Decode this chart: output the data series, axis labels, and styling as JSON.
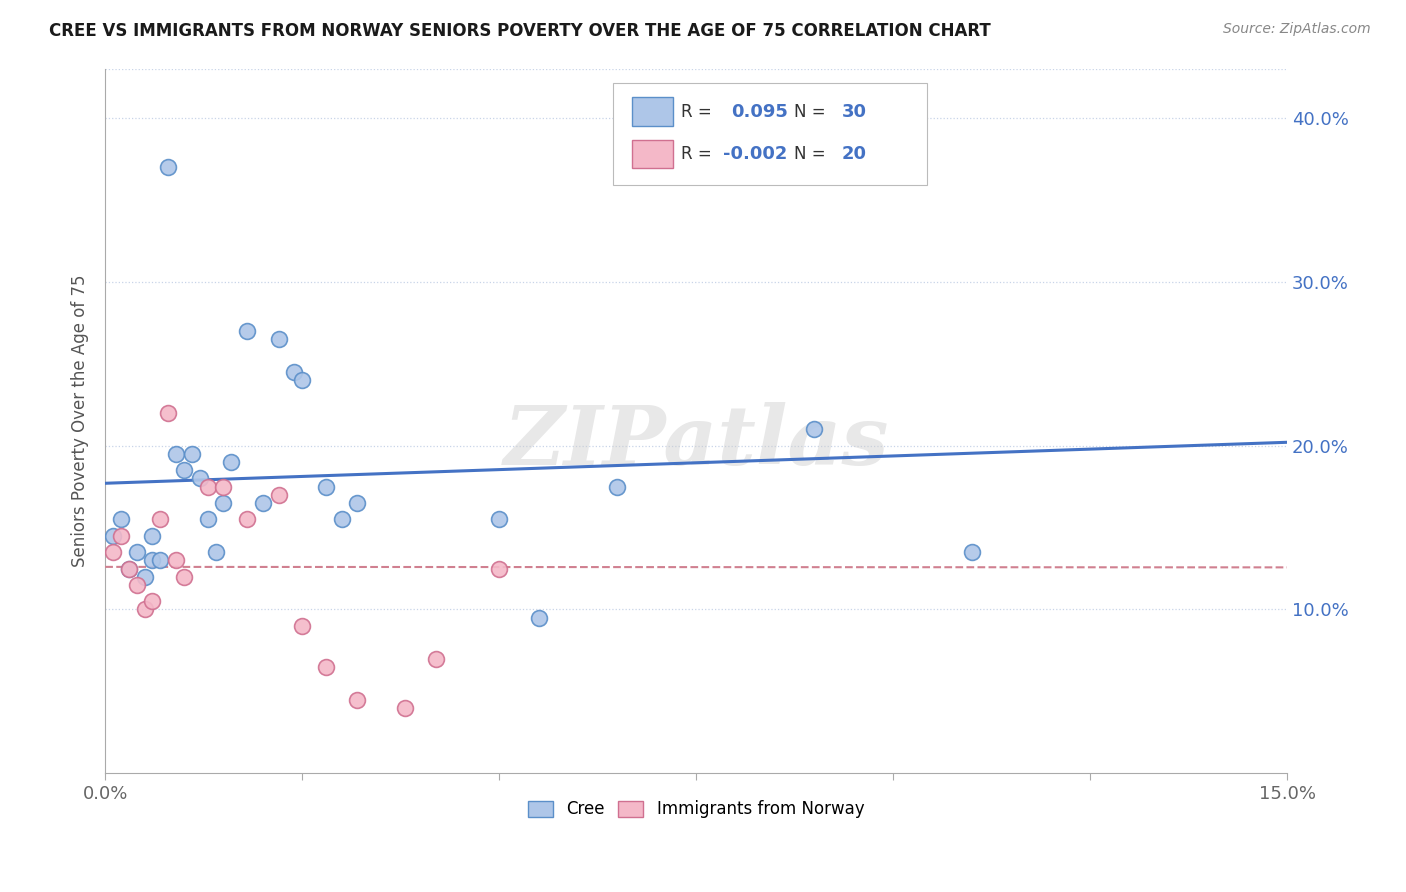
{
  "title": "CREE VS IMMIGRANTS FROM NORWAY SENIORS POVERTY OVER THE AGE OF 75 CORRELATION CHART",
  "source": "Source: ZipAtlas.com",
  "xlabel": "",
  "ylabel": "Seniors Poverty Over the Age of 75",
  "xlim": [
    0.0,
    0.15
  ],
  "ylim": [
    0.0,
    0.43
  ],
  "xticks": [
    0.0,
    0.025,
    0.05,
    0.075,
    0.1,
    0.125,
    0.15
  ],
  "xtick_labels": [
    "0.0%",
    "",
    "",
    "",
    "",
    "",
    "15.0%"
  ],
  "ytick_labels_right": [
    "10.0%",
    "20.0%",
    "30.0%",
    "40.0%"
  ],
  "ytick_vals_right": [
    0.1,
    0.2,
    0.3,
    0.4
  ],
  "cree_color": "#aec6e8",
  "norway_color": "#f4b8c8",
  "cree_edge_color": "#5b8fc9",
  "norway_edge_color": "#d07090",
  "cree_line_color": "#4472c4",
  "norway_line_color": "#d08090",
  "cree_R": 0.095,
  "cree_N": 30,
  "norway_R": -0.002,
  "norway_N": 20,
  "cree_points_x": [
    0.001,
    0.002,
    0.003,
    0.004,
    0.005,
    0.006,
    0.006,
    0.007,
    0.008,
    0.009,
    0.01,
    0.011,
    0.012,
    0.013,
    0.014,
    0.015,
    0.016,
    0.018,
    0.02,
    0.022,
    0.024,
    0.025,
    0.028,
    0.03,
    0.032,
    0.05,
    0.055,
    0.065,
    0.09,
    0.11
  ],
  "cree_points_y": [
    0.145,
    0.155,
    0.125,
    0.135,
    0.12,
    0.13,
    0.145,
    0.13,
    0.37,
    0.195,
    0.185,
    0.195,
    0.18,
    0.155,
    0.135,
    0.165,
    0.19,
    0.27,
    0.165,
    0.265,
    0.245,
    0.24,
    0.175,
    0.155,
    0.165,
    0.155,
    0.095,
    0.175,
    0.21,
    0.135
  ],
  "norway_points_x": [
    0.001,
    0.002,
    0.003,
    0.004,
    0.005,
    0.006,
    0.007,
    0.008,
    0.009,
    0.01,
    0.013,
    0.015,
    0.018,
    0.022,
    0.025,
    0.028,
    0.032,
    0.038,
    0.042,
    0.05
  ],
  "norway_points_y": [
    0.135,
    0.145,
    0.125,
    0.115,
    0.1,
    0.105,
    0.155,
    0.22,
    0.13,
    0.12,
    0.175,
    0.175,
    0.155,
    0.17,
    0.09,
    0.065,
    0.045,
    0.04,
    0.07,
    0.125
  ],
  "background_color": "#ffffff",
  "grid_color": "#c8d4e8",
  "watermark": "ZIPatlas"
}
